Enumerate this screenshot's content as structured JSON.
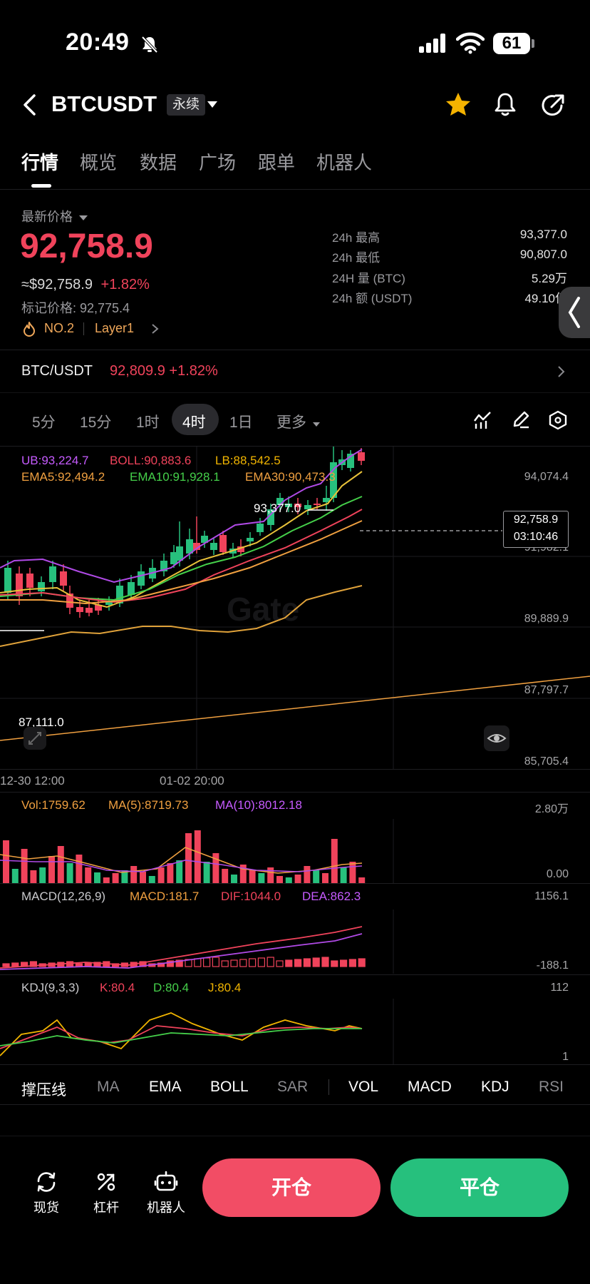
{
  "status_bar": {
    "time": "20:49",
    "battery": "61"
  },
  "header": {
    "title": "BTCUSDT",
    "badge": "永续"
  },
  "tabs": [
    {
      "label": "行情"
    },
    {
      "label": "概览"
    },
    {
      "label": "数据"
    },
    {
      "label": "广场"
    },
    {
      "label": "跟单"
    },
    {
      "label": "机器人"
    }
  ],
  "price": {
    "label": "最新价格",
    "last": "92,758.9",
    "usd_approx": "≈$92,758.9",
    "change": "+1.82%",
    "mark": "标记价格: 92,775.4",
    "rank": "NO.2",
    "tag": "Layer1"
  },
  "stats": [
    {
      "label": "24h  最高",
      "value": "93,377.0"
    },
    {
      "label": "24h  最低",
      "value": "90,807.0"
    },
    {
      "label": "24H  量 (BTC)",
      "value": "5.29万"
    },
    {
      "label": "24h  额 (USDT)",
      "value": "49.10亿"
    }
  ],
  "spot": {
    "pair": "BTC/USDT",
    "price": "92,809.9",
    "change": "+1.82%"
  },
  "intervals": [
    {
      "label": "5分"
    },
    {
      "label": "15分"
    },
    {
      "label": "1时"
    },
    {
      "label": "4时"
    },
    {
      "label": "1日"
    },
    {
      "label": "更多"
    }
  ],
  "main_chart": {
    "ub": "UB:93,224.7",
    "boll": "BOLL:90,883.6",
    "lb": "LB:88,542.5",
    "ema5": "EMA5:92,494.2",
    "ema10": "EMA10:91,928.1",
    "ema30": "EMA30:90,473.3",
    "y_ticks": [
      "94,074.4",
      "91,982.1",
      "89,889.9",
      "87,797.7",
      "85,705.4"
    ],
    "high_label": "93,377.0",
    "low_label": "87,111.0",
    "current_price": "92,758.9",
    "countdown": "03:10:46",
    "x_ticks": [
      "12-30 12:00",
      "01-02 20:00"
    ]
  },
  "volume": {
    "vol": "Vol:1759.62",
    "ma5": "MA(5):8719.73",
    "ma10": "MA(10):8012.18",
    "y_top": "2.80万",
    "y_bottom": "0.00"
  },
  "macd": {
    "title": "MACD(12,26,9)",
    "macd": "MACD:181.7",
    "dif": "DIF:1044.0",
    "dea": "DEA:862.3",
    "y_top": "1156.1",
    "y_bottom": "-188.1"
  },
  "kdj": {
    "title": "KDJ(9,3,3)",
    "k": "K:80.4",
    "d": "D:80.4",
    "j": "J:80.4",
    "y_top": "112",
    "y_bottom": "1"
  },
  "indicator_tabs": [
    {
      "label": "撑压线"
    },
    {
      "label": "MA"
    },
    {
      "label": "EMA"
    },
    {
      "label": "BOLL"
    },
    {
      "label": "SAR"
    },
    {
      "label": "VOL"
    },
    {
      "label": "MACD"
    },
    {
      "label": "KDJ"
    },
    {
      "label": "RSI"
    }
  ],
  "bottom_nav": {
    "spot": "现货",
    "leverage": "杠杆",
    "bot": "机器人",
    "open": "开仓",
    "close": "平仓"
  },
  "colors": {
    "up": "#27c07d",
    "down": "#f0435b",
    "accent_star": "#f5b300"
  }
}
